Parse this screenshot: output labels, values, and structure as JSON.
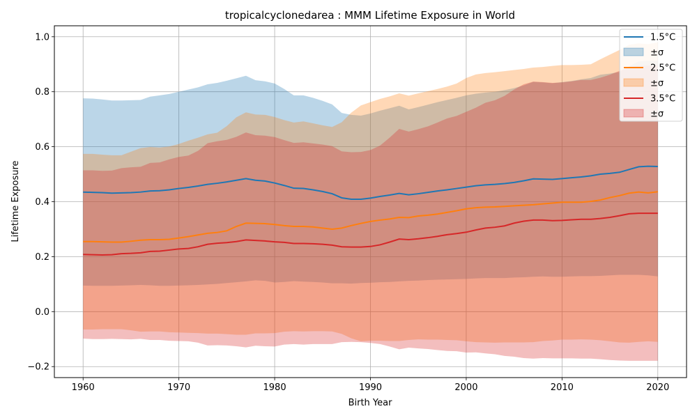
{
  "chart_data": {
    "type": "line",
    "title": "tropicalcyclonedarea : MMM Lifetime Exposure in World",
    "xlabel": "Birth Year",
    "ylabel": "Lifetime Exposure",
    "xlim": [
      1957,
      2023
    ],
    "ylim": [
      -0.24,
      1.04
    ],
    "xticks": [
      1960,
      1970,
      1980,
      1990,
      2000,
      2010,
      2020
    ],
    "yticks": [
      -0.2,
      0.0,
      0.2,
      0.4,
      0.6,
      0.8,
      1.0
    ],
    "xtick_labels": [
      "1960",
      "1970",
      "1980",
      "1990",
      "2000",
      "2010",
      "2020"
    ],
    "ytick_labels": [
      "−0.2",
      "0.0",
      "0.2",
      "0.4",
      "0.6",
      "0.8",
      "1.0"
    ],
    "grid": true,
    "legend_position": "top-right",
    "x": [
      1960,
      1961,
      1962,
      1963,
      1964,
      1965,
      1966,
      1967,
      1968,
      1969,
      1970,
      1971,
      1972,
      1973,
      1974,
      1975,
      1976,
      1977,
      1978,
      1979,
      1980,
      1981,
      1982,
      1983,
      1984,
      1985,
      1986,
      1987,
      1988,
      1989,
      1990,
      1991,
      1992,
      1993,
      1994,
      1995,
      1996,
      1997,
      1998,
      1999,
      2000,
      2001,
      2002,
      2003,
      2004,
      2005,
      2006,
      2007,
      2008,
      2009,
      2010,
      2011,
      2012,
      2013,
      2014,
      2015,
      2016,
      2017,
      2018,
      2019,
      2020
    ],
    "series": [
      {
        "name": "1.5°C",
        "color": "#1f77b4",
        "mean": [
          0.435,
          0.434,
          0.433,
          0.431,
          0.432,
          0.433,
          0.435,
          0.439,
          0.44,
          0.443,
          0.448,
          0.452,
          0.457,
          0.463,
          0.467,
          0.472,
          0.478,
          0.484,
          0.478,
          0.475,
          0.468,
          0.459,
          0.449,
          0.448,
          0.443,
          0.437,
          0.429,
          0.414,
          0.409,
          0.409,
          0.413,
          0.419,
          0.424,
          0.43,
          0.425,
          0.429,
          0.434,
          0.439,
          0.443,
          0.448,
          0.453,
          0.458,
          0.461,
          0.463,
          0.466,
          0.47,
          0.476,
          0.483,
          0.482,
          0.481,
          0.484,
          0.487,
          0.49,
          0.494,
          0.5,
          0.503,
          0.507,
          0.517,
          0.527,
          0.529,
          0.528
        ],
        "upper": [
          0.776,
          0.775,
          0.772,
          0.768,
          0.768,
          0.769,
          0.77,
          0.782,
          0.787,
          0.792,
          0.8,
          0.808,
          0.816,
          0.827,
          0.832,
          0.84,
          0.849,
          0.858,
          0.842,
          0.838,
          0.83,
          0.81,
          0.787,
          0.787,
          0.778,
          0.767,
          0.754,
          0.723,
          0.716,
          0.713,
          0.721,
          0.731,
          0.74,
          0.749,
          0.736,
          0.744,
          0.753,
          0.762,
          0.77,
          0.778,
          0.787,
          0.793,
          0.797,
          0.8,
          0.806,
          0.813,
          0.823,
          0.836,
          0.834,
          0.831,
          0.835,
          0.839,
          0.845,
          0.85,
          0.862,
          0.866,
          0.872,
          0.893,
          0.91,
          0.913,
          0.913
        ],
        "lower": [
          0.095,
          0.094,
          0.094,
          0.094,
          0.095,
          0.096,
          0.097,
          0.096,
          0.094,
          0.094,
          0.095,
          0.096,
          0.097,
          0.099,
          0.101,
          0.104,
          0.107,
          0.11,
          0.114,
          0.112,
          0.106,
          0.108,
          0.111,
          0.109,
          0.108,
          0.106,
          0.103,
          0.103,
          0.102,
          0.104,
          0.105,
          0.107,
          0.108,
          0.11,
          0.112,
          0.113,
          0.115,
          0.116,
          0.117,
          0.118,
          0.119,
          0.121,
          0.122,
          0.122,
          0.122,
          0.124,
          0.125,
          0.127,
          0.128,
          0.127,
          0.127,
          0.128,
          0.129,
          0.129,
          0.13,
          0.132,
          0.134,
          0.134,
          0.134,
          0.132,
          0.128
        ]
      },
      {
        "name": "2.5°C",
        "color": "#ff7f0e",
        "mean": [
          0.255,
          0.255,
          0.254,
          0.253,
          0.253,
          0.256,
          0.26,
          0.262,
          0.262,
          0.263,
          0.268,
          0.273,
          0.279,
          0.285,
          0.288,
          0.294,
          0.31,
          0.322,
          0.321,
          0.32,
          0.317,
          0.313,
          0.31,
          0.31,
          0.308,
          0.304,
          0.3,
          0.304,
          0.313,
          0.321,
          0.328,
          0.333,
          0.337,
          0.343,
          0.342,
          0.348,
          0.351,
          0.355,
          0.361,
          0.367,
          0.374,
          0.378,
          0.38,
          0.381,
          0.383,
          0.385,
          0.387,
          0.389,
          0.392,
          0.395,
          0.398,
          0.398,
          0.398,
          0.401,
          0.406,
          0.415,
          0.422,
          0.431,
          0.435,
          0.432,
          0.436
        ],
        "upper": [
          0.574,
          0.574,
          0.571,
          0.569,
          0.569,
          0.582,
          0.595,
          0.599,
          0.597,
          0.601,
          0.61,
          0.622,
          0.633,
          0.645,
          0.651,
          0.675,
          0.707,
          0.725,
          0.717,
          0.716,
          0.708,
          0.697,
          0.688,
          0.692,
          0.685,
          0.678,
          0.672,
          0.689,
          0.724,
          0.75,
          0.762,
          0.774,
          0.783,
          0.794,
          0.786,
          0.794,
          0.802,
          0.81,
          0.819,
          0.83,
          0.85,
          0.863,
          0.868,
          0.871,
          0.875,
          0.879,
          0.883,
          0.888,
          0.89,
          0.894,
          0.897,
          0.897,
          0.898,
          0.9,
          0.918,
          0.935,
          0.952,
          0.971,
          0.976,
          0.973,
          0.98
        ],
        "lower": [
          -0.065,
          -0.065,
          -0.064,
          -0.064,
          -0.064,
          -0.068,
          -0.073,
          -0.072,
          -0.072,
          -0.075,
          -0.076,
          -0.077,
          -0.078,
          -0.08,
          -0.08,
          -0.082,
          -0.084,
          -0.084,
          -0.079,
          -0.079,
          -0.078,
          -0.073,
          -0.071,
          -0.072,
          -0.071,
          -0.071,
          -0.072,
          -0.081,
          -0.097,
          -0.108,
          -0.106,
          -0.106,
          -0.107,
          -0.107,
          -0.103,
          -0.101,
          -0.102,
          -0.102,
          -0.103,
          -0.104,
          -0.108,
          -0.111,
          -0.112,
          -0.113,
          -0.112,
          -0.112,
          -0.112,
          -0.111,
          -0.107,
          -0.105,
          -0.102,
          -0.102,
          -0.101,
          -0.102,
          -0.104,
          -0.108,
          -0.112,
          -0.113,
          -0.11,
          -0.108,
          -0.11
        ]
      },
      {
        "name": "3.5°C",
        "color": "#d62728",
        "mean": [
          0.208,
          0.207,
          0.206,
          0.207,
          0.211,
          0.212,
          0.214,
          0.219,
          0.22,
          0.224,
          0.228,
          0.23,
          0.236,
          0.245,
          0.249,
          0.251,
          0.255,
          0.261,
          0.259,
          0.257,
          0.254,
          0.252,
          0.248,
          0.248,
          0.247,
          0.245,
          0.242,
          0.236,
          0.235,
          0.235,
          0.237,
          0.243,
          0.253,
          0.264,
          0.262,
          0.265,
          0.269,
          0.274,
          0.28,
          0.284,
          0.289,
          0.297,
          0.304,
          0.307,
          0.312,
          0.322,
          0.329,
          0.333,
          0.333,
          0.331,
          0.332,
          0.334,
          0.336,
          0.336,
          0.339,
          0.343,
          0.349,
          0.356,
          0.358,
          0.358,
          0.358
        ],
        "upper": [
          0.514,
          0.514,
          0.512,
          0.513,
          0.522,
          0.525,
          0.527,
          0.541,
          0.543,
          0.554,
          0.563,
          0.568,
          0.585,
          0.613,
          0.62,
          0.625,
          0.636,
          0.652,
          0.642,
          0.64,
          0.635,
          0.624,
          0.614,
          0.616,
          0.612,
          0.608,
          0.602,
          0.583,
          0.58,
          0.581,
          0.588,
          0.604,
          0.633,
          0.665,
          0.655,
          0.664,
          0.674,
          0.688,
          0.703,
          0.712,
          0.727,
          0.742,
          0.76,
          0.769,
          0.785,
          0.808,
          0.827,
          0.837,
          0.835,
          0.832,
          0.834,
          0.838,
          0.843,
          0.843,
          0.851,
          0.862,
          0.876,
          0.891,
          0.895,
          0.895,
          0.895
        ],
        "lower": [
          -0.098,
          -0.1,
          -0.1,
          -0.099,
          -0.1,
          -0.101,
          -0.099,
          -0.103,
          -0.103,
          -0.106,
          -0.107,
          -0.108,
          -0.113,
          -0.123,
          -0.122,
          -0.123,
          -0.126,
          -0.13,
          -0.124,
          -0.126,
          -0.127,
          -0.12,
          -0.118,
          -0.12,
          -0.118,
          -0.118,
          -0.118,
          -0.111,
          -0.11,
          -0.111,
          -0.114,
          -0.118,
          -0.127,
          -0.137,
          -0.131,
          -0.134,
          -0.136,
          -0.14,
          -0.143,
          -0.144,
          -0.149,
          -0.148,
          -0.152,
          -0.155,
          -0.161,
          -0.164,
          -0.169,
          -0.171,
          -0.169,
          -0.17,
          -0.17,
          -0.17,
          -0.171,
          -0.171,
          -0.173,
          -0.176,
          -0.178,
          -0.179,
          -0.179,
          -0.179,
          -0.179
        ]
      }
    ],
    "legend": [
      {
        "label": "1.5°C",
        "kind": "line",
        "color": "#1f77b4"
      },
      {
        "label": "±σ",
        "kind": "patch",
        "color": "#1f77b4"
      },
      {
        "label": "2.5°C",
        "kind": "line",
        "color": "#ff7f0e"
      },
      {
        "label": "±σ",
        "kind": "patch",
        "color": "#ff7f0e"
      },
      {
        "label": "3.5°C",
        "kind": "line",
        "color": "#d62728"
      },
      {
        "label": "±σ",
        "kind": "patch",
        "color": "#d62728"
      }
    ]
  }
}
